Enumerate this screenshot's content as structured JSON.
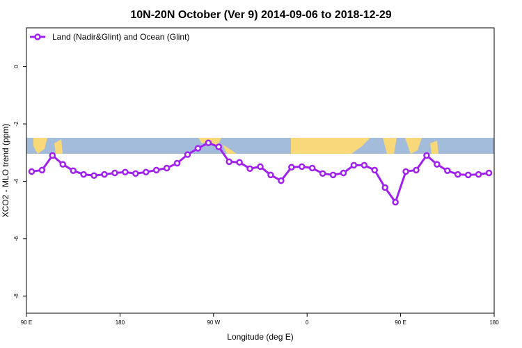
{
  "chart_data": {
    "type": "line",
    "title": "10N-20N October (Ver 9)   2014-09-06 to 2018-12-29",
    "x_label": "Longitude (deg E)",
    "y_label": "XCO2 - MLO trend (ppm)",
    "x": [
      95,
      105,
      115,
      125,
      135,
      145,
      155,
      165,
      175,
      185,
      195,
      205,
      215,
      225,
      235,
      245,
      255,
      265,
      275,
      285,
      295,
      305,
      315,
      325,
      335,
      345,
      355,
      365,
      375,
      385,
      395,
      405,
      415,
      425,
      435,
      445,
      455,
      465,
      475,
      485,
      495,
      505,
      515,
      525,
      535
    ],
    "series": [
      {
        "name": "Land (Nadir&Glint) and Ocean (Glint)",
        "color": "#a020f0",
        "values": [
          -3.66,
          -3.61,
          -3.1,
          -3.41,
          -3.63,
          -3.76,
          -3.8,
          -3.76,
          -3.71,
          -3.68,
          -3.73,
          -3.68,
          -3.61,
          -3.54,
          -3.37,
          -3.07,
          -2.85,
          -2.66,
          -2.8,
          -3.32,
          -3.34,
          -3.56,
          -3.49,
          -3.78,
          -3.98,
          -3.51,
          -3.49,
          -3.54,
          -3.73,
          -3.78,
          -3.71,
          -3.44,
          -3.44,
          -3.61,
          -4.22,
          -4.73,
          -3.66,
          -3.61,
          -3.1,
          -3.41,
          -3.63,
          -3.76,
          -3.78,
          -3.76,
          -3.71
        ]
      }
    ],
    "xlim": [
      90,
      540
    ],
    "xticks": [
      {
        "value": 90,
        "label": "90 E"
      },
      {
        "value": 180,
        "label": "180"
      },
      {
        "value": 270,
        "label": "90 W"
      },
      {
        "value": 360,
        "label": "0"
      },
      {
        "value": 450,
        "label": "90 E"
      },
      {
        "value": 540,
        "label": "180"
      }
    ],
    "ylim": [
      -8.6,
      1.35
    ],
    "yticks": [
      0,
      -2,
      -4,
      -6,
      -8
    ],
    "legend": "top-left"
  }
}
